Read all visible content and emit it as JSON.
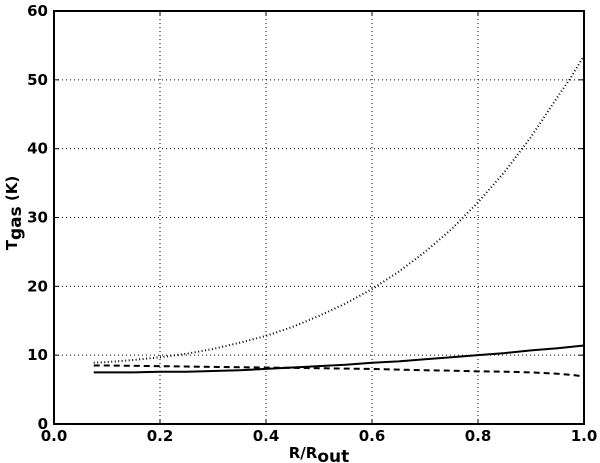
{
  "chart_data": {
    "type": "line",
    "title": "",
    "xlabel": {
      "main": "R/R",
      "sub": "out"
    },
    "ylabel": {
      "main": "T",
      "sub": "gas",
      "suffix": " (K)"
    },
    "xlim": [
      0.0,
      1.0
    ],
    "ylim": [
      0,
      60
    ],
    "grid": true,
    "xticks": [
      0.0,
      0.2,
      0.4,
      0.6,
      0.8,
      1.0
    ],
    "xtick_labels": [
      "0.0",
      "0.2",
      "0.4",
      "0.6",
      "0.8",
      "1.0"
    ],
    "yticks": [
      0,
      10,
      20,
      30,
      40,
      50,
      60
    ],
    "ytick_labels": [
      "0",
      "10",
      "20",
      "30",
      "40",
      "50",
      "60"
    ],
    "x": [
      0.075,
      0.1,
      0.15,
      0.2,
      0.25,
      0.3,
      0.35,
      0.4,
      0.45,
      0.5,
      0.55,
      0.6,
      0.65,
      0.7,
      0.75,
      0.8,
      0.85,
      0.9,
      0.95,
      0.975,
      1.0
    ],
    "series": [
      {
        "style": "dotted",
        "color": "#000000",
        "values": [
          8.9,
          9.0,
          9.3,
          9.7,
          10.2,
          10.9,
          11.8,
          12.8,
          14.1,
          15.7,
          17.5,
          19.6,
          22.1,
          25.0,
          28.3,
          32.2,
          36.6,
          41.7,
          47.5,
          50.3,
          53.5
        ]
      },
      {
        "style": "solid",
        "color": "#000000",
        "values": [
          7.5,
          7.5,
          7.5,
          7.6,
          7.6,
          7.7,
          7.8,
          8.0,
          8.2,
          8.4,
          8.6,
          8.9,
          9.1,
          9.4,
          9.7,
          10.0,
          10.3,
          10.7,
          11.0,
          11.2,
          11.4
        ]
      },
      {
        "style": "dashed",
        "color": "#000000",
        "values": [
          8.5,
          8.5,
          8.45,
          8.4,
          8.35,
          8.3,
          8.25,
          8.2,
          8.15,
          8.1,
          8.05,
          8.0,
          7.9,
          7.8,
          7.75,
          7.65,
          7.6,
          7.5,
          7.3,
          7.15,
          6.9
        ]
      }
    ]
  }
}
